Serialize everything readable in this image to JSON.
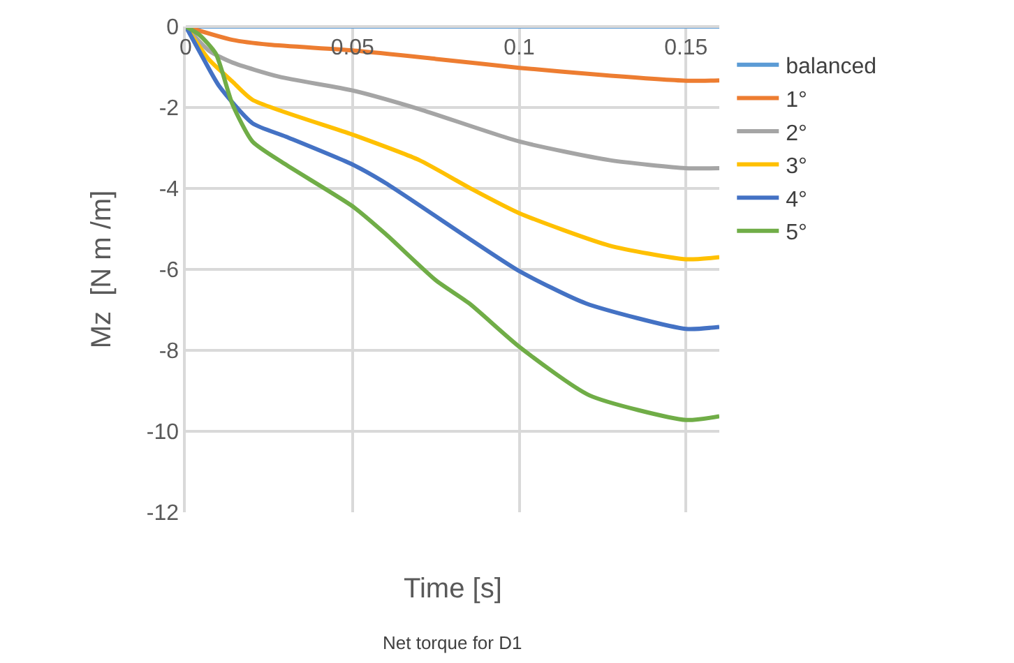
{
  "chart_data": {
    "type": "line",
    "xlabel": "Time [s]",
    "ylabel": "Mz  [N m /m]",
    "annotations": [
      "Net torque for D1"
    ],
    "xlim": [
      0,
      0.16
    ],
    "xticks": [
      0,
      0.05,
      0.1,
      0.15
    ],
    "ylim": [
      -12,
      0
    ],
    "yticks": [
      -12,
      -10,
      -8,
      -6,
      -4,
      -2,
      0
    ],
    "grid": true,
    "legend": "right",
    "marker": "none",
    "line_style": "solid",
    "series": [
      {
        "name": "balanced",
        "color": "#5b9bd5",
        "x": [
          0,
          0.05,
          0.1,
          0.15,
          0.16
        ],
        "values": [
          0,
          0,
          0,
          0,
          0
        ]
      },
      {
        "name": "1°",
        "color": "#ed7d31",
        "x": [
          0,
          0.014,
          0.025,
          0.05,
          0.075,
          0.1,
          0.125,
          0.15,
          0.16
        ],
        "values": [
          0,
          -0.33,
          -0.45,
          -0.59,
          -0.8,
          -1.02,
          -1.2,
          -1.34,
          -1.33
        ]
      },
      {
        "name": "2°",
        "color": "#a5a5a5",
        "x": [
          0,
          0.007,
          0.014,
          0.028,
          0.05,
          0.07,
          0.1,
          0.127,
          0.15,
          0.16
        ],
        "values": [
          0,
          -0.6,
          -0.89,
          -1.24,
          -1.58,
          -2.04,
          -2.84,
          -3.3,
          -3.5,
          -3.5
        ]
      },
      {
        "name": "3°",
        "color": "#ffc000",
        "x": [
          0,
          0.007,
          0.014,
          0.02,
          0.05,
          0.07,
          0.085,
          0.1,
          0.127,
          0.15,
          0.16
        ],
        "values": [
          0,
          -0.82,
          -1.36,
          -1.81,
          -2.67,
          -3.3,
          -3.98,
          -4.61,
          -5.41,
          -5.75,
          -5.7
        ]
      },
      {
        "name": "4°",
        "color": "#4472c4",
        "x": [
          0,
          0.005,
          0.01,
          0.02,
          0.03,
          0.05,
          0.06,
          0.085,
          0.1,
          0.12,
          0.15,
          0.16
        ],
        "values": [
          0,
          -0.75,
          -1.47,
          -2.39,
          -2.72,
          -3.41,
          -3.87,
          -5.24,
          -6.04,
          -6.84,
          -7.47,
          -7.42
        ]
      },
      {
        "name": "5°",
        "color": "#70ad47",
        "x": [
          0,
          0.004,
          0.009,
          0.014,
          0.02,
          0.03,
          0.05,
          0.06,
          0.075,
          0.085,
          0.1,
          0.121,
          0.15,
          0.16
        ],
        "values": [
          0,
          -0.2,
          -0.67,
          -1.92,
          -2.84,
          -3.41,
          -4.44,
          -5.13,
          -6.27,
          -6.84,
          -7.91,
          -9.11,
          -9.72,
          -9.63
        ]
      }
    ]
  }
}
